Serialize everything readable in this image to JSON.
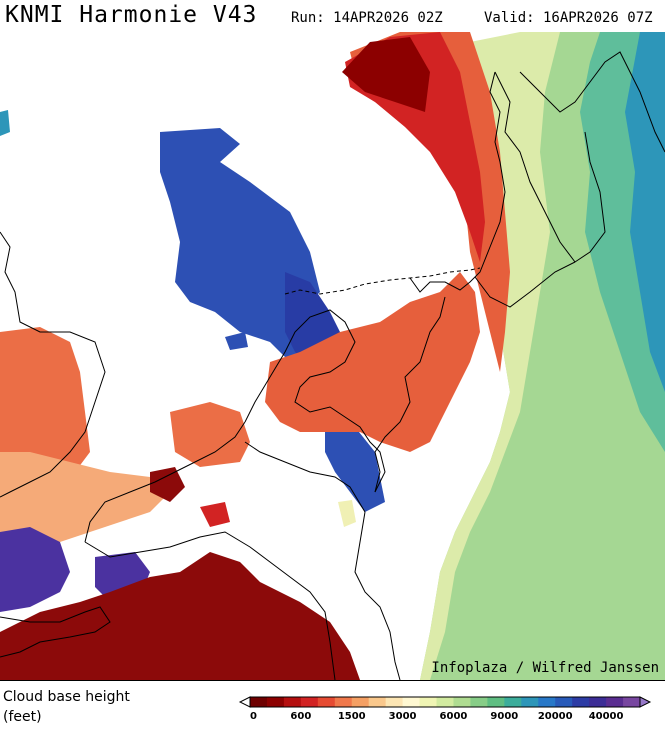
{
  "header": {
    "title": "KNMI Harmonie V43",
    "run": "Run: 14APR2026 02Z",
    "valid": "Valid: 16APR2026 07Z"
  },
  "credit": "Infoplaza / Wilfred Janssen",
  "legend": {
    "title_line1": "Cloud base height",
    "title_line2": "(feet)",
    "tick_labels": [
      "0",
      "600",
      "1500",
      "3000",
      "6000",
      "9000",
      "20000",
      "40000"
    ],
    "colors": [
      "#6e0000",
      "#8c0000",
      "#b40f0f",
      "#d22323",
      "#e64b32",
      "#f0784b",
      "#f5a064",
      "#fac88c",
      "#fde6b4",
      "#fff8d2",
      "#f0f5b4",
      "#d2eba0",
      "#afdc91",
      "#87cd87",
      "#5fbe82",
      "#3cad9b",
      "#2d96b9",
      "#2878c8",
      "#285ab9",
      "#2d3ca5",
      "#3c2d96",
      "#5a2d91",
      "#7846a0"
    ],
    "arrow_left_color": "#ffffff",
    "arrow_right_color": "#9678c8"
  },
  "layers": {
    "water_color": "#ffffff",
    "border_color": "#000000",
    "regions": [
      {
        "name": "east-green-band",
        "color": "#a5d793"
      },
      {
        "name": "east-teal-band",
        "color": "#5fbe9b"
      },
      {
        "name": "north-dark-red",
        "color": "#8c0000"
      },
      {
        "name": "north-red-band",
        "color": "#d22323"
      },
      {
        "name": "central-orange",
        "color": "#e65f3c"
      },
      {
        "name": "north-sea-blue",
        "color": "#2d50b4"
      },
      {
        "name": "north-sea-darkblue",
        "color": "#283ca5"
      },
      {
        "name": "west-orange",
        "color": "#eb6e46"
      },
      {
        "name": "west-peach",
        "color": "#f5aa78"
      },
      {
        "name": "southwest-purple",
        "color": "#4b32a0"
      },
      {
        "name": "south-darkred",
        "color": "#8c0a0a"
      },
      {
        "name": "east-yellow-strip",
        "color": "#f0f0b4"
      }
    ]
  }
}
